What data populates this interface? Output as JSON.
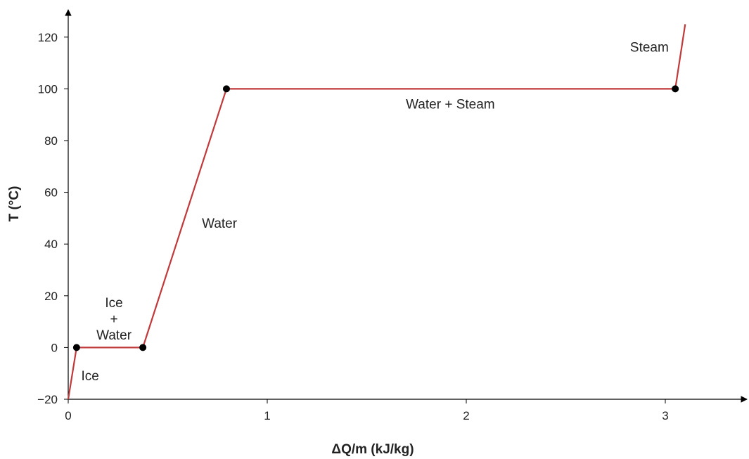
{
  "chart_data": {
    "type": "line",
    "title": "",
    "xlabel": "ΔQ/m (kJ/kg)",
    "ylabel": "T (°C)",
    "xlim": [
      0,
      3.4
    ],
    "ylim": [
      -20,
      125
    ],
    "x_ticks": [
      "0",
      "1",
      "2",
      "3"
    ],
    "y_ticks": [
      "−20",
      "0",
      "20",
      "40",
      "60",
      "80",
      "100",
      "120"
    ],
    "grid": false,
    "line_color": "#c0393b",
    "marker_color": "#000000",
    "series": [
      {
        "x": [
          0,
          0.042,
          0.375,
          0.795,
          3.05,
          3.1
        ],
        "y": [
          -20,
          0,
          0,
          100,
          100,
          125
        ]
      }
    ],
    "markers": [
      {
        "x": 0.042,
        "y": 0
      },
      {
        "x": 0.375,
        "y": 0
      },
      {
        "x": 0.795,
        "y": 100
      },
      {
        "x": 3.05,
        "y": 100
      }
    ],
    "annotations": [
      {
        "lines": [
          "Ice"
        ],
        "x": 0.11,
        "y": -11
      },
      {
        "lines": [
          "Ice",
          "+",
          "Water"
        ],
        "x": 0.23,
        "y": 11
      },
      {
        "lines": [
          "Water"
        ],
        "x": 0.76,
        "y": 48
      },
      {
        "lines": [
          "Water + Steam"
        ],
        "x": 1.92,
        "y": 94
      },
      {
        "lines": [
          "Steam"
        ],
        "x": 2.92,
        "y": 116
      }
    ]
  }
}
